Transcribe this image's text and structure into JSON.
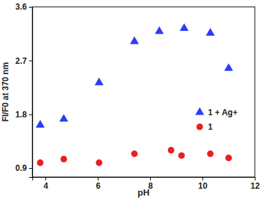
{
  "chart_data": {
    "type": "scatter",
    "x_label": "pH",
    "y_label": "FI/F0 at 370 nm",
    "xlim": [
      3.5,
      12
    ],
    "xticks": [
      4,
      6,
      8,
      10,
      12
    ],
    "ylim": [
      0.75,
      3.6
    ],
    "yticks": [
      0.9,
      1.8,
      2.7,
      3.6
    ],
    "grid": false,
    "legend": "right",
    "series": [
      {
        "name": "1 + Ag+",
        "color": "#2b3cf5",
        "marker": "triangle",
        "x": [
          3.8,
          4.7,
          6.05,
          7.4,
          8.35,
          9.3,
          10.3,
          11.0
        ],
        "values": [
          1.62,
          1.72,
          2.33,
          3.02,
          3.19,
          3.24,
          3.16,
          2.57
        ]
      },
      {
        "name": "1",
        "color": "#e8201f",
        "marker": "circle",
        "x": [
          3.8,
          4.7,
          6.05,
          7.4,
          8.8,
          9.2,
          10.3,
          11.0
        ],
        "values": [
          0.99,
          1.05,
          0.99,
          1.14,
          1.2,
          1.11,
          1.14,
          1.07
        ]
      }
    ]
  }
}
